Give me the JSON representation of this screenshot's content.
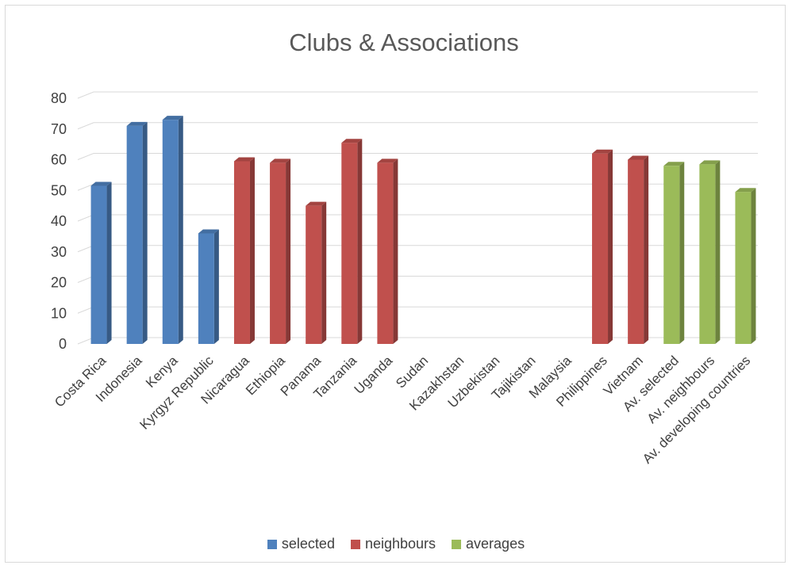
{
  "chart_data": {
    "type": "bar",
    "title": "Clubs & Associations",
    "xlabel": "",
    "ylabel": "",
    "ylim": [
      0,
      80
    ],
    "yticks": [
      0,
      10,
      20,
      30,
      40,
      50,
      60,
      70,
      80
    ],
    "grid": true,
    "legend_position": "bottom",
    "categories": [
      "Costa Rica",
      "Indonesia",
      "Kenya",
      "Kyrgyz Republic",
      "Nicaragua",
      "Ethiopia",
      "Panama",
      "Tanzania",
      "Uganda",
      "Sudan",
      "Kazakhstan",
      "Uzbekistan",
      "Tajikistan",
      "Malaysia",
      "Philippines",
      "Vietnam",
      "Av. selected",
      "Av. neighbours",
      "Av. developing countries"
    ],
    "series": [
      {
        "name": "selected",
        "color": "#4f81bd",
        "values": [
          51.5,
          71,
          73,
          36,
          null,
          null,
          null,
          null,
          null,
          null,
          null,
          null,
          null,
          null,
          null,
          null,
          null,
          null,
          null
        ]
      },
      {
        "name": "neighbours",
        "color": "#c0504d",
        "values": [
          null,
          null,
          null,
          null,
          59.5,
          59,
          45,
          65.5,
          59,
          null,
          null,
          null,
          null,
          null,
          62,
          60,
          null,
          null,
          null
        ]
      },
      {
        "name": "averages",
        "color": "#9bbb59",
        "values": [
          null,
          null,
          null,
          null,
          null,
          null,
          null,
          null,
          null,
          null,
          null,
          null,
          null,
          null,
          null,
          null,
          58,
          58.5,
          49.5
        ]
      }
    ]
  }
}
